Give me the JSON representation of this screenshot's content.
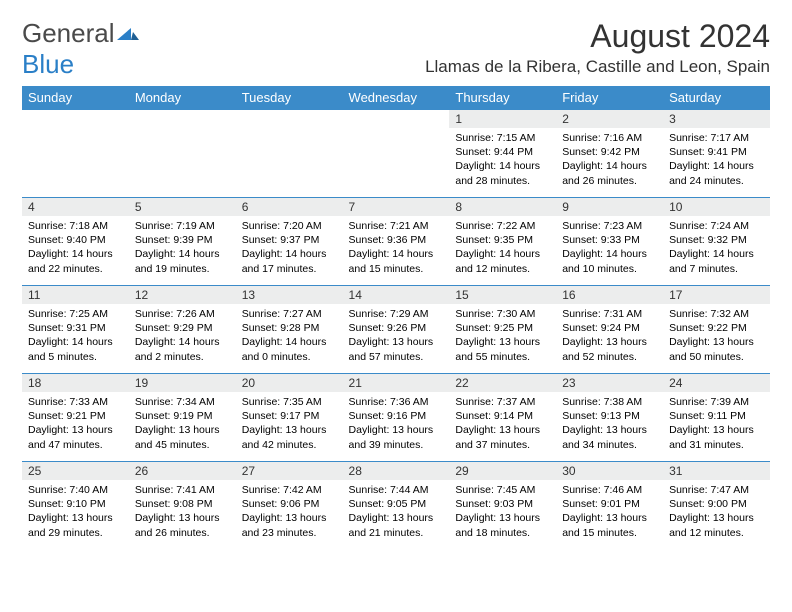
{
  "logo": {
    "word1": "General",
    "word2": "Blue"
  },
  "title": "August 2024",
  "location": "Llamas de la Ribera, Castille and Leon, Spain",
  "colors": {
    "header_blue": "#3b8bc9",
    "day_header_bg": "#eceded",
    "row_border": "#3b8bc9",
    "logo_blue": "#2a7fc7",
    "text": "#000000"
  },
  "weekdays": [
    "Sunday",
    "Monday",
    "Tuesday",
    "Wednesday",
    "Thursday",
    "Friday",
    "Saturday"
  ],
  "weeks": [
    [
      null,
      null,
      null,
      null,
      {
        "n": "1",
        "sr": "7:15 AM",
        "ss": "9:44 PM",
        "dl": "14 hours and 28 minutes."
      },
      {
        "n": "2",
        "sr": "7:16 AM",
        "ss": "9:42 PM",
        "dl": "14 hours and 26 minutes."
      },
      {
        "n": "3",
        "sr": "7:17 AM",
        "ss": "9:41 PM",
        "dl": "14 hours and 24 minutes."
      }
    ],
    [
      {
        "n": "4",
        "sr": "7:18 AM",
        "ss": "9:40 PM",
        "dl": "14 hours and 22 minutes."
      },
      {
        "n": "5",
        "sr": "7:19 AM",
        "ss": "9:39 PM",
        "dl": "14 hours and 19 minutes."
      },
      {
        "n": "6",
        "sr": "7:20 AM",
        "ss": "9:37 PM",
        "dl": "14 hours and 17 minutes."
      },
      {
        "n": "7",
        "sr": "7:21 AM",
        "ss": "9:36 PM",
        "dl": "14 hours and 15 minutes."
      },
      {
        "n": "8",
        "sr": "7:22 AM",
        "ss": "9:35 PM",
        "dl": "14 hours and 12 minutes."
      },
      {
        "n": "9",
        "sr": "7:23 AM",
        "ss": "9:33 PM",
        "dl": "14 hours and 10 minutes."
      },
      {
        "n": "10",
        "sr": "7:24 AM",
        "ss": "9:32 PM",
        "dl": "14 hours and 7 minutes."
      }
    ],
    [
      {
        "n": "11",
        "sr": "7:25 AM",
        "ss": "9:31 PM",
        "dl": "14 hours and 5 minutes."
      },
      {
        "n": "12",
        "sr": "7:26 AM",
        "ss": "9:29 PM",
        "dl": "14 hours and 2 minutes."
      },
      {
        "n": "13",
        "sr": "7:27 AM",
        "ss": "9:28 PM",
        "dl": "14 hours and 0 minutes."
      },
      {
        "n": "14",
        "sr": "7:29 AM",
        "ss": "9:26 PM",
        "dl": "13 hours and 57 minutes."
      },
      {
        "n": "15",
        "sr": "7:30 AM",
        "ss": "9:25 PM",
        "dl": "13 hours and 55 minutes."
      },
      {
        "n": "16",
        "sr": "7:31 AM",
        "ss": "9:24 PM",
        "dl": "13 hours and 52 minutes."
      },
      {
        "n": "17",
        "sr": "7:32 AM",
        "ss": "9:22 PM",
        "dl": "13 hours and 50 minutes."
      }
    ],
    [
      {
        "n": "18",
        "sr": "7:33 AM",
        "ss": "9:21 PM",
        "dl": "13 hours and 47 minutes."
      },
      {
        "n": "19",
        "sr": "7:34 AM",
        "ss": "9:19 PM",
        "dl": "13 hours and 45 minutes."
      },
      {
        "n": "20",
        "sr": "7:35 AM",
        "ss": "9:17 PM",
        "dl": "13 hours and 42 minutes."
      },
      {
        "n": "21",
        "sr": "7:36 AM",
        "ss": "9:16 PM",
        "dl": "13 hours and 39 minutes."
      },
      {
        "n": "22",
        "sr": "7:37 AM",
        "ss": "9:14 PM",
        "dl": "13 hours and 37 minutes."
      },
      {
        "n": "23",
        "sr": "7:38 AM",
        "ss": "9:13 PM",
        "dl": "13 hours and 34 minutes."
      },
      {
        "n": "24",
        "sr": "7:39 AM",
        "ss": "9:11 PM",
        "dl": "13 hours and 31 minutes."
      }
    ],
    [
      {
        "n": "25",
        "sr": "7:40 AM",
        "ss": "9:10 PM",
        "dl": "13 hours and 29 minutes."
      },
      {
        "n": "26",
        "sr": "7:41 AM",
        "ss": "9:08 PM",
        "dl": "13 hours and 26 minutes."
      },
      {
        "n": "27",
        "sr": "7:42 AM",
        "ss": "9:06 PM",
        "dl": "13 hours and 23 minutes."
      },
      {
        "n": "28",
        "sr": "7:44 AM",
        "ss": "9:05 PM",
        "dl": "13 hours and 21 minutes."
      },
      {
        "n": "29",
        "sr": "7:45 AM",
        "ss": "9:03 PM",
        "dl": "13 hours and 18 minutes."
      },
      {
        "n": "30",
        "sr": "7:46 AM",
        "ss": "9:01 PM",
        "dl": "13 hours and 15 minutes."
      },
      {
        "n": "31",
        "sr": "7:47 AM",
        "ss": "9:00 PM",
        "dl": "13 hours and 12 minutes."
      }
    ]
  ],
  "labels": {
    "sunrise": "Sunrise:",
    "sunset": "Sunset:",
    "daylight": "Daylight:"
  }
}
